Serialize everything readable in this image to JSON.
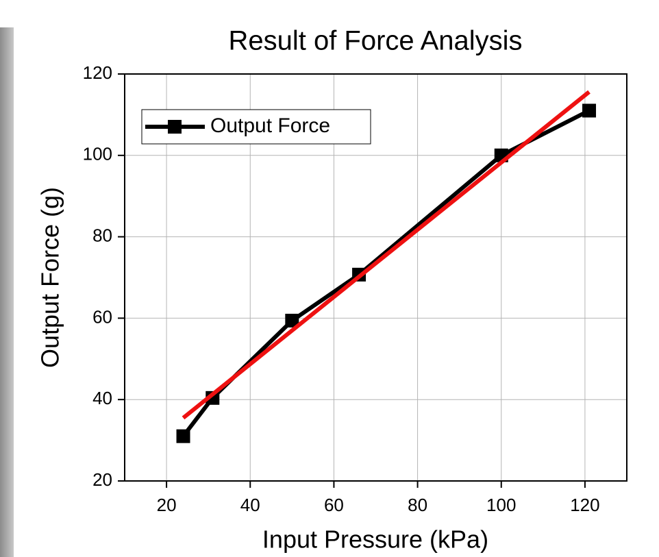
{
  "chart_data": {
    "type": "line",
    "title": "Result of Force Analysis",
    "x_label": "Input Pressure (kPa)",
    "y_label": "Output Force (g)",
    "x": [
      24,
      31,
      50,
      66,
      100,
      121
    ],
    "series": [
      {
        "name": "Output Force",
        "color": "#000000",
        "marker": "square",
        "values": [
          31,
          40.4,
          59.4,
          70.7,
          100,
          111
        ]
      },
      {
        "color": "#ee1111",
        "x": [
          24,
          121
        ],
        "values": [
          35.5,
          115.6
        ]
      }
    ],
    "xlim": [
      10,
      130
    ],
    "xticks": [
      20,
      40,
      60,
      80,
      100,
      120
    ],
    "ylim": [
      20,
      120
    ],
    "yticks": [
      20,
      40,
      60,
      80,
      100,
      120
    ],
    "grid": true,
    "legend": "upper-left"
  }
}
